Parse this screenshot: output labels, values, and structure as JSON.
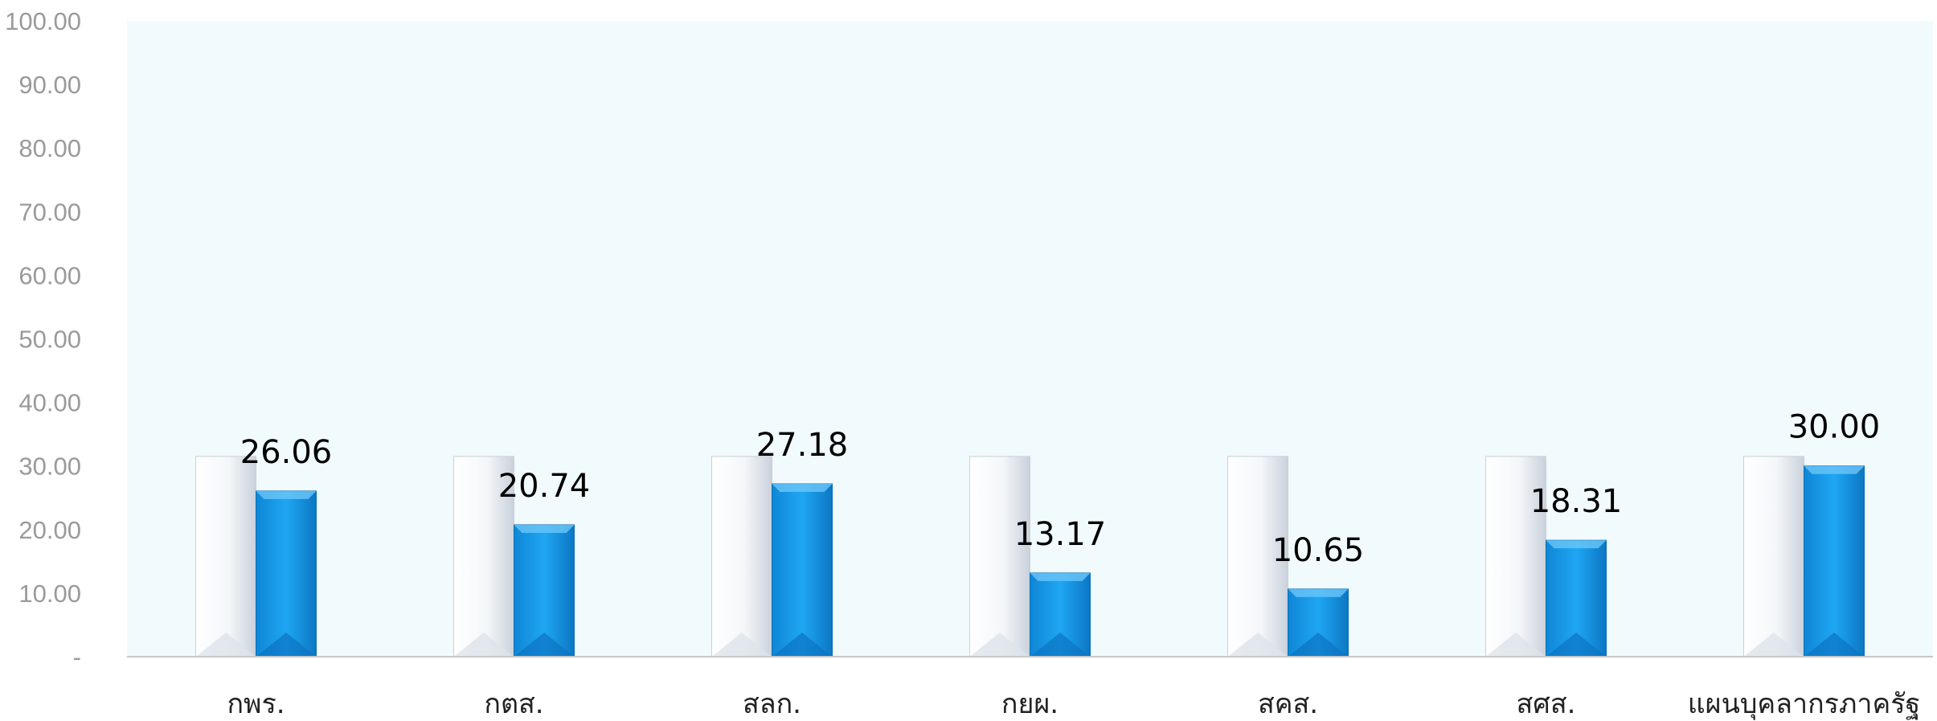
{
  "chart_data": {
    "type": "bar",
    "title": "",
    "xlabel": "",
    "ylabel": "",
    "ylim": [
      0,
      100
    ],
    "yticks": [
      "-",
      "10.00",
      "20.00",
      "30.00",
      "40.00",
      "50.00",
      "60.00",
      "70.00",
      "80.00",
      "90.00",
      "100.00"
    ],
    "categories": [
      "กพร.",
      "กตส.",
      "สลก.",
      "กยผ.",
      "สคส.",
      "สศส.",
      "แผนบุคลากรภาครัฐ"
    ],
    "series": [
      {
        "values": [
          31.5,
          31.5,
          31.5,
          31.5,
          31.5,
          31.5,
          31.5
        ],
        "color": "#eef3f8"
      },
      {
        "values": [
          26.06,
          20.74,
          27.18,
          13.17,
          10.65,
          18.31,
          30.0
        ],
        "color": "#1a9be8"
      }
    ],
    "data_labels": [
      "26.06",
      "20.74",
      "27.18",
      "13.17",
      "10.65",
      "18.31",
      "30.00"
    ],
    "plot_background": "#f1fafd",
    "grid": false,
    "legend": "none"
  }
}
